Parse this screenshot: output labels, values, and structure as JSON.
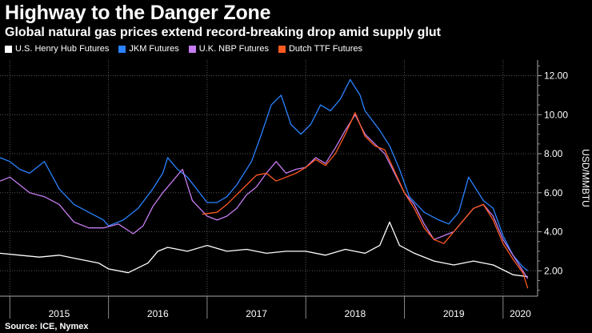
{
  "header": {
    "title": "Highway to the Danger Zone",
    "subtitle": "Global natural gas prices extend record-breaking drop amid supply glut"
  },
  "footer": {
    "source": "Source: ICE, Nymex"
  },
  "chart_data": {
    "type": "line",
    "ylabel": "USD/MMBTU",
    "ylim": [
      0.7,
      12.8
    ],
    "xlim": [
      2014.9,
      2020.35
    ],
    "y_ticks": [
      "2.00",
      "4.00",
      "6.00",
      "8.00",
      "10.00",
      "12.00"
    ],
    "x_ticks": [
      {
        "label": "2015",
        "at": 2015.0
      },
      {
        "label": "2016",
        "at": 2016.0
      },
      {
        "label": "2017",
        "at": 2017.0
      },
      {
        "label": "2018",
        "at": 2018.0
      },
      {
        "label": "2019",
        "at": 2019.0
      },
      {
        "label": "2020",
        "at": 2020.0
      }
    ],
    "grid": true,
    "legend_position": "top-left",
    "series": [
      {
        "name": "U.S. Henry Hub Futures",
        "color": "#ffffff",
        "x": [
          2014.9,
          2015.1,
          2015.3,
          2015.5,
          2015.7,
          2015.9,
          2016.0,
          2016.2,
          2016.4,
          2016.5,
          2016.6,
          2016.8,
          2017.0,
          2017.2,
          2017.4,
          2017.6,
          2017.8,
          2018.0,
          2018.2,
          2018.4,
          2018.6,
          2018.75,
          2018.85,
          2018.95,
          2019.1,
          2019.3,
          2019.5,
          2019.7,
          2019.9,
          2020.1,
          2020.25
        ],
        "y": [
          2.9,
          2.8,
          2.7,
          2.8,
          2.6,
          2.4,
          2.1,
          1.9,
          2.4,
          3.0,
          3.2,
          3.0,
          3.3,
          3.0,
          3.1,
          2.9,
          3.0,
          3.0,
          2.8,
          3.1,
          2.9,
          3.3,
          4.5,
          3.3,
          2.9,
          2.5,
          2.3,
          2.5,
          2.3,
          1.8,
          1.7
        ]
      },
      {
        "name": "JKM Futures",
        "color": "#2a82ff",
        "x": [
          2014.9,
          2015.0,
          2015.1,
          2015.2,
          2015.35,
          2015.5,
          2015.65,
          2015.8,
          2015.95,
          2016.0,
          2016.15,
          2016.3,
          2016.45,
          2016.55,
          2016.6,
          2016.7,
          2016.8,
          2017.0,
          2017.1,
          2017.2,
          2017.3,
          2017.45,
          2017.55,
          2017.65,
          2017.75,
          2017.85,
          2017.95,
          2018.05,
          2018.15,
          2018.25,
          2018.35,
          2018.45,
          2018.55,
          2018.6,
          2018.75,
          2018.85,
          2018.95,
          2019.05,
          2019.2,
          2019.35,
          2019.45,
          2019.55,
          2019.65,
          2019.8,
          2019.9,
          2020.0,
          2020.1,
          2020.2,
          2020.25
        ],
        "y": [
          7.8,
          7.6,
          7.2,
          7.0,
          7.6,
          6.2,
          5.4,
          5.0,
          4.6,
          4.3,
          4.6,
          5.2,
          6.2,
          7.0,
          7.8,
          7.2,
          6.8,
          5.5,
          5.5,
          5.8,
          6.4,
          7.6,
          9.0,
          10.5,
          11.0,
          9.5,
          9.0,
          9.5,
          10.5,
          10.2,
          10.8,
          11.8,
          11.0,
          10.2,
          9.2,
          8.4,
          7.2,
          5.8,
          5.0,
          4.6,
          4.4,
          5.0,
          6.8,
          5.6,
          5.2,
          3.8,
          2.8,
          2.2,
          2.0
        ]
      },
      {
        "name": "U.K. NBP Futures",
        "color": "#c67cf0",
        "x": [
          2014.9,
          2015.0,
          2015.1,
          2015.2,
          2015.35,
          2015.5,
          2015.65,
          2015.8,
          2015.95,
          2016.1,
          2016.25,
          2016.35,
          2016.45,
          2016.55,
          2016.65,
          2016.75,
          2016.85,
          2017.0,
          2017.1,
          2017.2,
          2017.3,
          2017.4,
          2017.5,
          2017.6,
          2017.7,
          2017.8,
          2017.9,
          2018.0,
          2018.1,
          2018.2,
          2018.3,
          2018.4,
          2018.5,
          2018.6,
          2018.7,
          2018.8,
          2018.9,
          2019.0,
          2019.1,
          2019.2,
          2019.3,
          2019.4,
          2019.5,
          2019.6,
          2019.7,
          2019.8,
          2019.9,
          2020.0,
          2020.1,
          2020.2,
          2020.25
        ],
        "y": [
          6.6,
          6.8,
          6.4,
          6.0,
          5.8,
          5.4,
          4.5,
          4.2,
          4.2,
          4.4,
          3.9,
          4.3,
          5.3,
          6.0,
          6.6,
          7.2,
          5.6,
          4.8,
          4.6,
          4.8,
          5.2,
          5.9,
          6.3,
          7.0,
          7.6,
          7.0,
          7.2,
          7.3,
          7.8,
          7.5,
          8.3,
          9.2,
          10.0,
          9.0,
          8.5,
          8.0,
          7.0,
          6.0,
          5.4,
          4.4,
          3.6,
          3.8,
          4.0,
          4.6,
          5.2,
          5.4,
          4.8,
          3.6,
          2.8,
          2.0,
          1.6
        ]
      },
      {
        "name": "Dutch TTF Futures",
        "color": "#ff5a1f",
        "x": [
          2016.95,
          2017.1,
          2017.2,
          2017.3,
          2017.4,
          2017.5,
          2017.6,
          2017.7,
          2017.8,
          2017.9,
          2018.0,
          2018.1,
          2018.2,
          2018.3,
          2018.4,
          2018.5,
          2018.6,
          2018.7,
          2018.8,
          2018.9,
          2019.0,
          2019.1,
          2019.2,
          2019.3,
          2019.4,
          2019.5,
          2019.6,
          2019.7,
          2019.8,
          2019.9,
          2020.0,
          2020.1,
          2020.2,
          2020.25
        ],
        "y": [
          4.9,
          5.0,
          5.4,
          5.9,
          6.4,
          6.9,
          7.0,
          6.6,
          6.8,
          7.0,
          7.3,
          7.7,
          7.4,
          8.0,
          9.0,
          10.1,
          8.9,
          8.4,
          8.2,
          7.1,
          6.0,
          5.2,
          4.2,
          3.6,
          3.4,
          4.0,
          4.6,
          5.2,
          5.4,
          4.6,
          3.4,
          2.6,
          1.9,
          1.1
        ]
      }
    ]
  }
}
